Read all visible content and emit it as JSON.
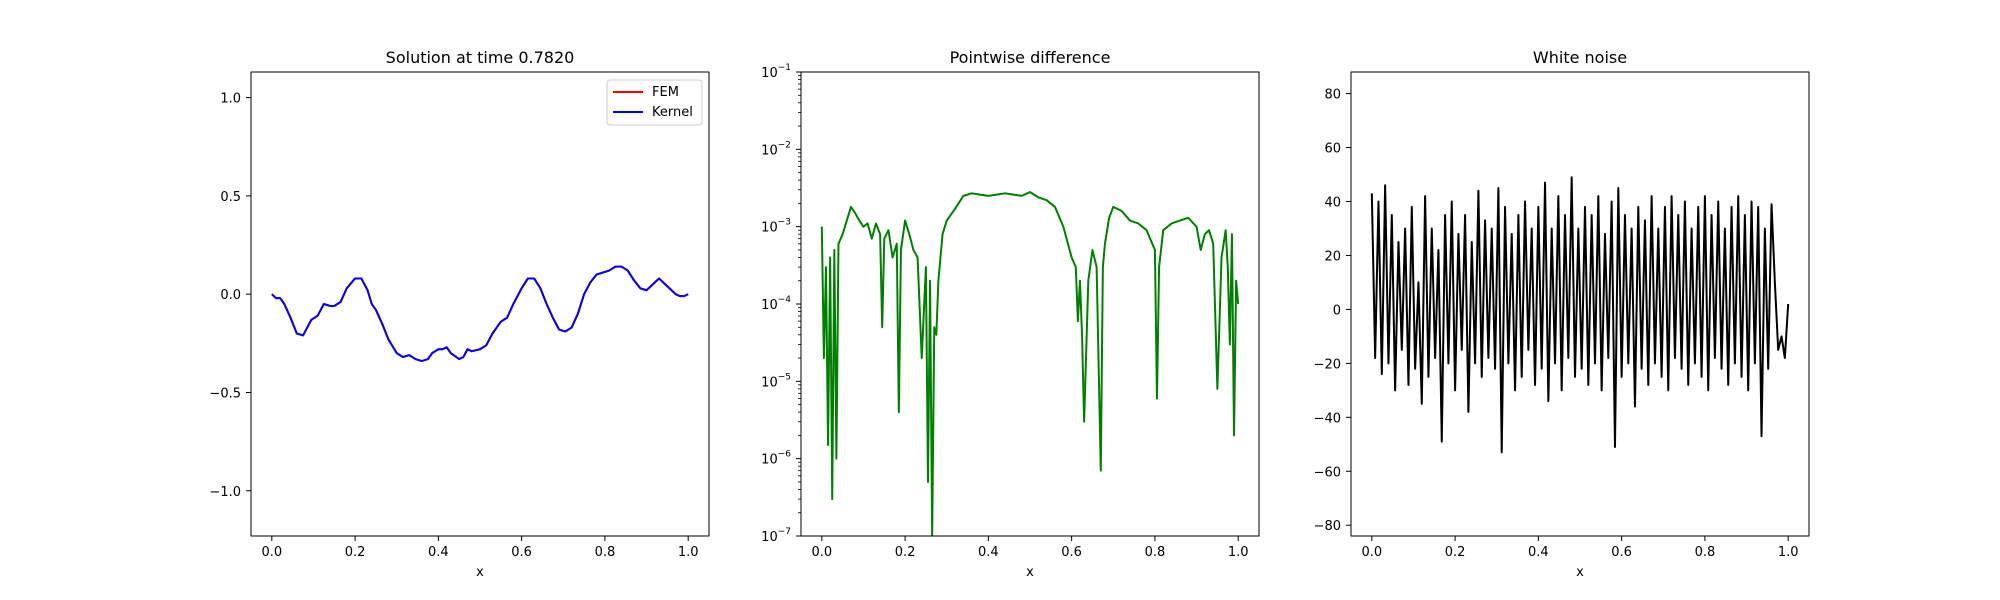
{
  "chart_data": [
    {
      "type": "line",
      "title": "Solution at time 0.7820",
      "xlabel": "x",
      "ylabel": "",
      "xlim": [
        -0.05,
        1.05
      ],
      "ylim": [
        -1.23,
        1.13
      ],
      "xticks": [
        "0.0",
        "0.2",
        "0.4",
        "0.6",
        "0.8",
        "1.0"
      ],
      "yticks": [
        "−1.0",
        "−0.5",
        "0.0",
        "0.5",
        "1.0"
      ],
      "legend": "top-right",
      "series": [
        {
          "name": "FEM",
          "color": "#ff0000",
          "x": [
            0.0,
            0.01,
            0.02,
            0.03,
            0.045,
            0.06,
            0.075,
            0.085,
            0.095,
            0.11,
            0.125,
            0.14,
            0.15,
            0.165,
            0.18,
            0.2,
            0.215,
            0.23,
            0.24,
            0.25,
            0.265,
            0.28,
            0.3,
            0.315,
            0.33,
            0.345,
            0.36,
            0.375,
            0.385,
            0.4,
            0.41,
            0.42,
            0.43,
            0.45,
            0.46,
            0.47,
            0.48,
            0.5,
            0.515,
            0.53,
            0.55,
            0.565,
            0.58,
            0.6,
            0.615,
            0.63,
            0.645,
            0.66,
            0.675,
            0.69,
            0.705,
            0.72,
            0.735,
            0.75,
            0.765,
            0.78,
            0.795,
            0.81,
            0.825,
            0.84,
            0.855,
            0.87,
            0.885,
            0.9,
            0.915,
            0.93,
            0.945,
            0.96,
            0.97,
            0.98,
            0.99,
            1.0
          ],
          "y": [
            0.0,
            -0.02,
            -0.02,
            -0.05,
            -0.12,
            -0.2,
            -0.21,
            -0.17,
            -0.13,
            -0.11,
            -0.05,
            -0.06,
            -0.06,
            -0.04,
            0.03,
            0.08,
            0.08,
            0.02,
            -0.05,
            -0.08,
            -0.15,
            -0.23,
            -0.3,
            -0.32,
            -0.31,
            -0.33,
            -0.34,
            -0.33,
            -0.3,
            -0.28,
            -0.28,
            -0.27,
            -0.3,
            -0.33,
            -0.32,
            -0.28,
            -0.29,
            -0.28,
            -0.26,
            -0.2,
            -0.14,
            -0.12,
            -0.05,
            0.03,
            0.08,
            0.08,
            0.03,
            -0.05,
            -0.12,
            -0.18,
            -0.19,
            -0.17,
            -0.1,
            0.0,
            0.06,
            0.1,
            0.11,
            0.12,
            0.14,
            0.14,
            0.12,
            0.07,
            0.03,
            0.02,
            0.05,
            0.08,
            0.05,
            0.02,
            0.0,
            -0.01,
            -0.01,
            0.0
          ]
        },
        {
          "name": "Kernel",
          "color": "#0000ff",
          "x": [
            0.0,
            0.01,
            0.02,
            0.03,
            0.045,
            0.06,
            0.075,
            0.085,
            0.095,
            0.11,
            0.125,
            0.14,
            0.15,
            0.165,
            0.18,
            0.2,
            0.215,
            0.23,
            0.24,
            0.25,
            0.265,
            0.28,
            0.3,
            0.315,
            0.33,
            0.345,
            0.36,
            0.375,
            0.385,
            0.4,
            0.41,
            0.42,
            0.43,
            0.45,
            0.46,
            0.47,
            0.48,
            0.5,
            0.515,
            0.53,
            0.55,
            0.565,
            0.58,
            0.6,
            0.615,
            0.63,
            0.645,
            0.66,
            0.675,
            0.69,
            0.705,
            0.72,
            0.735,
            0.75,
            0.765,
            0.78,
            0.795,
            0.81,
            0.825,
            0.84,
            0.855,
            0.87,
            0.885,
            0.9,
            0.915,
            0.93,
            0.945,
            0.96,
            0.97,
            0.98,
            0.99,
            1.0
          ],
          "y": [
            0.0,
            -0.02,
            -0.02,
            -0.05,
            -0.12,
            -0.2,
            -0.21,
            -0.17,
            -0.13,
            -0.11,
            -0.05,
            -0.06,
            -0.06,
            -0.04,
            0.03,
            0.08,
            0.08,
            0.02,
            -0.05,
            -0.08,
            -0.15,
            -0.23,
            -0.3,
            -0.32,
            -0.31,
            -0.33,
            -0.34,
            -0.33,
            -0.3,
            -0.28,
            -0.28,
            -0.27,
            -0.3,
            -0.33,
            -0.32,
            -0.28,
            -0.29,
            -0.28,
            -0.26,
            -0.2,
            -0.14,
            -0.12,
            -0.05,
            0.03,
            0.08,
            0.08,
            0.03,
            -0.05,
            -0.12,
            -0.18,
            -0.19,
            -0.17,
            -0.1,
            0.0,
            0.06,
            0.1,
            0.11,
            0.12,
            0.14,
            0.14,
            0.12,
            0.07,
            0.03,
            0.02,
            0.05,
            0.08,
            0.05,
            0.02,
            0.0,
            -0.01,
            -0.01,
            0.0
          ]
        }
      ]
    },
    {
      "type": "line",
      "title": "Pointwise difference",
      "xlabel": "x",
      "ylabel": "",
      "yscale": "log",
      "xlim": [
        -0.05,
        1.05
      ],
      "ylim": [
        1e-07,
        0.1
      ],
      "xticks": [
        "0.0",
        "0.2",
        "0.4",
        "0.6",
        "0.8",
        "1.0"
      ],
      "yticks": [
        {
          "base": "10",
          "exp": "−7"
        },
        {
          "base": "10",
          "exp": "−6"
        },
        {
          "base": "10",
          "exp": "−5"
        },
        {
          "base": "10",
          "exp": "−4"
        },
        {
          "base": "10",
          "exp": "−3"
        },
        {
          "base": "10",
          "exp": "−2"
        },
        {
          "base": "10",
          "exp": "−1"
        }
      ],
      "series": [
        {
          "color": "#008000",
          "x": [
            0.0,
            0.005,
            0.01,
            0.015,
            0.02,
            0.025,
            0.03,
            0.035,
            0.04,
            0.05,
            0.06,
            0.07,
            0.08,
            0.09,
            0.1,
            0.11,
            0.12,
            0.13,
            0.14,
            0.145,
            0.15,
            0.16,
            0.17,
            0.18,
            0.185,
            0.19,
            0.2,
            0.21,
            0.22,
            0.23,
            0.24,
            0.25,
            0.255,
            0.26,
            0.265,
            0.27,
            0.275,
            0.28,
            0.29,
            0.3,
            0.32,
            0.34,
            0.36,
            0.38,
            0.4,
            0.42,
            0.44,
            0.46,
            0.48,
            0.5,
            0.52,
            0.54,
            0.56,
            0.58,
            0.6,
            0.61,
            0.615,
            0.62,
            0.625,
            0.63,
            0.64,
            0.65,
            0.66,
            0.67,
            0.675,
            0.68,
            0.69,
            0.7,
            0.72,
            0.74,
            0.76,
            0.78,
            0.8,
            0.805,
            0.81,
            0.82,
            0.84,
            0.86,
            0.88,
            0.9,
            0.91,
            0.92,
            0.93,
            0.94,
            0.95,
            0.96,
            0.97,
            0.975,
            0.98,
            0.985,
            0.99,
            0.995,
            1.0
          ],
          "y": [
            0.001,
            2e-05,
            0.0003,
            1.5e-06,
            0.0004,
            3e-07,
            0.0005,
            1e-06,
            0.0006,
            0.0008,
            0.0012,
            0.0018,
            0.0015,
            0.0012,
            0.001,
            0.0011,
            0.0007,
            0.0011,
            0.0008,
            5e-05,
            0.0007,
            0.0009,
            0.0004,
            0.0006,
            4e-06,
            0.0005,
            0.0012,
            0.0008,
            0.0005,
            0.0004,
            2e-05,
            0.0003,
            5e-07,
            0.0002,
            1e-07,
            5e-05,
            4e-05,
            0.0002,
            0.0008,
            0.0012,
            0.0017,
            0.0025,
            0.0027,
            0.0026,
            0.0025,
            0.0026,
            0.0027,
            0.0026,
            0.0025,
            0.0028,
            0.0024,
            0.0022,
            0.0018,
            0.001,
            0.0004,
            0.0003,
            6e-05,
            0.0002,
            4e-05,
            3e-06,
            0.0002,
            0.0005,
            0.0003,
            7e-07,
            0.0003,
            0.0006,
            0.0013,
            0.0018,
            0.0016,
            0.0012,
            0.0011,
            0.0009,
            0.0005,
            6e-06,
            0.0003,
            0.0009,
            0.0011,
            0.0012,
            0.0013,
            0.001,
            0.0005,
            0.0008,
            0.0009,
            0.0006,
            8e-06,
            0.0004,
            0.0009,
            0.0003,
            3e-05,
            0.0008,
            2e-06,
            0.0002,
            0.0001
          ]
        }
      ]
    },
    {
      "type": "line",
      "title": "White noise",
      "xlabel": "x",
      "ylabel": "",
      "xlim": [
        -0.05,
        1.05
      ],
      "ylim": [
        -84,
        88
      ],
      "xticks": [
        "0.0",
        "0.2",
        "0.4",
        "0.6",
        "0.8",
        "1.0"
      ],
      "yticks": [
        "−80",
        "−60",
        "−40",
        "−20",
        "0",
        "20",
        "40",
        "60",
        "80"
      ],
      "series": [
        {
          "color": "#000000",
          "x": [
            0.0,
            0.008,
            0.016,
            0.024,
            0.032,
            0.04,
            0.048,
            0.056,
            0.064,
            0.072,
            0.08,
            0.088,
            0.096,
            0.104,
            0.112,
            0.12,
            0.128,
            0.136,
            0.144,
            0.152,
            0.16,
            0.168,
            0.176,
            0.184,
            0.192,
            0.2,
            0.208,
            0.216,
            0.224,
            0.232,
            0.24,
            0.248,
            0.256,
            0.264,
            0.272,
            0.28,
            0.288,
            0.296,
            0.304,
            0.312,
            0.32,
            0.328,
            0.336,
            0.344,
            0.352,
            0.36,
            0.368,
            0.376,
            0.384,
            0.392,
            0.4,
            0.408,
            0.416,
            0.424,
            0.432,
            0.44,
            0.448,
            0.456,
            0.464,
            0.472,
            0.48,
            0.488,
            0.496,
            0.504,
            0.512,
            0.52,
            0.528,
            0.536,
            0.544,
            0.552,
            0.56,
            0.568,
            0.576,
            0.584,
            0.592,
            0.6,
            0.608,
            0.616,
            0.624,
            0.632,
            0.64,
            0.648,
            0.656,
            0.664,
            0.672,
            0.68,
            0.688,
            0.696,
            0.704,
            0.712,
            0.72,
            0.728,
            0.736,
            0.744,
            0.752,
            0.76,
            0.768,
            0.776,
            0.784,
            0.792,
            0.8,
            0.808,
            0.816,
            0.824,
            0.832,
            0.84,
            0.848,
            0.856,
            0.864,
            0.872,
            0.88,
            0.888,
            0.896,
            0.904,
            0.912,
            0.92,
            0.928,
            0.936,
            0.944,
            0.952,
            0.96,
            0.968,
            0.976,
            0.984,
            0.992,
            1.0
          ],
          "y": [
            43,
            -18,
            40,
            -24,
            46,
            -20,
            35,
            -30,
            25,
            -15,
            30,
            -28,
            38,
            -22,
            10,
            -35,
            42,
            -25,
            30,
            -18,
            22,
            -49,
            35,
            -20,
            40,
            -30,
            28,
            -15,
            35,
            -38,
            25,
            -20,
            44,
            -25,
            33,
            -18,
            30,
            -22,
            45,
            -53,
            38,
            -20,
            28,
            -30,
            35,
            -25,
            40,
            -15,
            30,
            -28,
            38,
            -22,
            47,
            -34,
            30,
            -20,
            42,
            -30,
            35,
            -18,
            49,
            -25,
            30,
            -22,
            38,
            -28,
            35,
            -20,
            42,
            -30,
            28,
            -18,
            40,
            -51,
            45,
            -25,
            35,
            -20,
            30,
            -36,
            38,
            -22,
            33,
            -28,
            42,
            -20,
            30,
            -25,
            38,
            -30,
            42,
            -18,
            35,
            -22,
            40,
            -28,
            30,
            -20,
            38,
            -25,
            42,
            -30,
            35,
            -18,
            40,
            -22,
            30,
            -28,
            38,
            -20,
            42,
            -25,
            35,
            -30,
            40,
            -20,
            38,
            -47,
            30,
            -22,
            39,
            10,
            -15,
            -10,
            -18,
            2
          ]
        }
      ]
    }
  ]
}
